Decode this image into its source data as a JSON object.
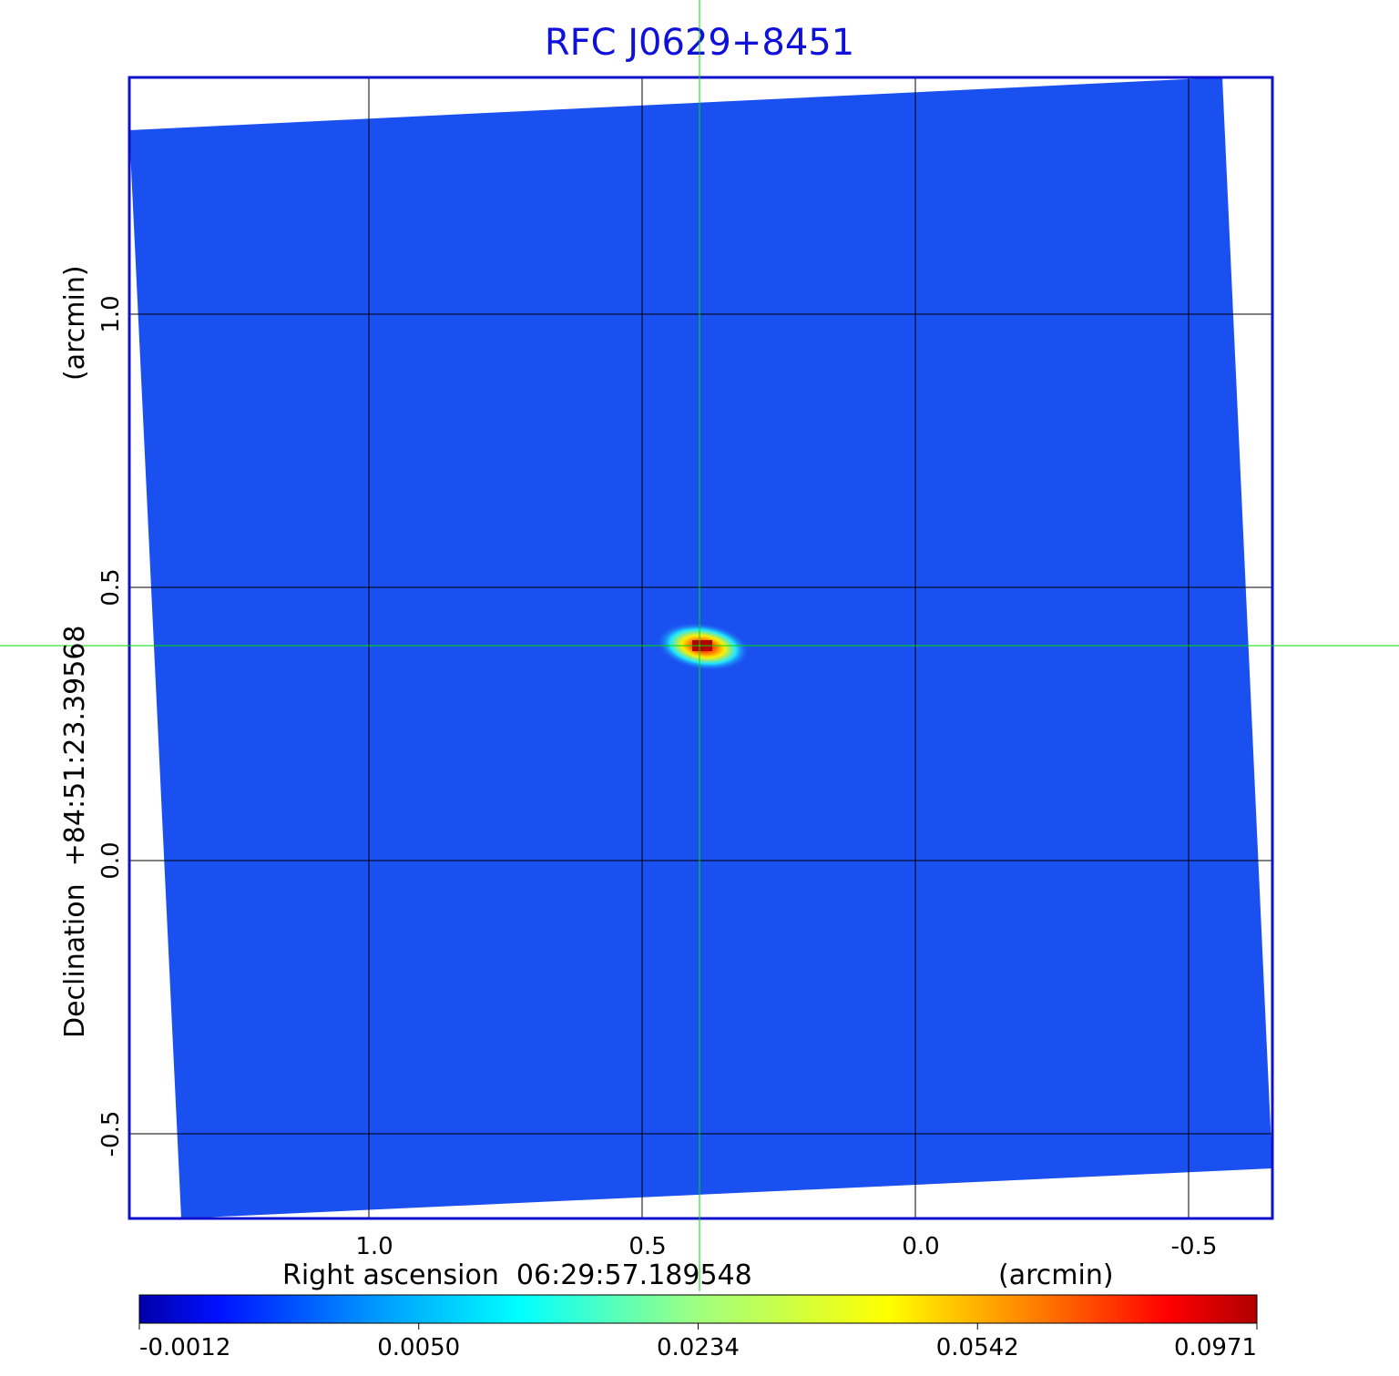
{
  "chart_data": {
    "type": "heatmap",
    "title": "RFC J0629+8451",
    "xlabel": "Right ascension  06:29:57.189548",
    "xunit": "(arcmin)",
    "ylabel": "Declination  +84:51:23.39568",
    "yunit": "(arcmin)",
    "xticks": [
      "1.0",
      "0.5",
      "0.0",
      "-0.5"
    ],
    "xtick_values": [
      1.0,
      0.5,
      0.0,
      -0.5
    ],
    "yticks": [
      "1.0",
      "0.5",
      "0.0",
      "-0.5"
    ],
    "ytick_values": [
      1.0,
      0.5,
      0.0,
      -0.5
    ],
    "xlim": [
      1.44,
      -0.65
    ],
    "ylim": [
      -0.66,
      1.43
    ],
    "grid": true,
    "crosshair": {
      "x": 0.395,
      "y": 0.393,
      "color": "#00dd00"
    },
    "source_peak": {
      "x": 0.39,
      "y": 0.39
    },
    "colormap": "jet",
    "colorbar": {
      "ticks": [
        "-0.0012",
        "0.0050",
        "0.0234",
        "0.0542",
        "0.0971"
      ],
      "range": [
        -0.0012,
        0.0971
      ]
    },
    "colors": {
      "title": "#1010dd",
      "frame": "#1010cc",
      "background_noise": "#1a4ff0"
    }
  }
}
